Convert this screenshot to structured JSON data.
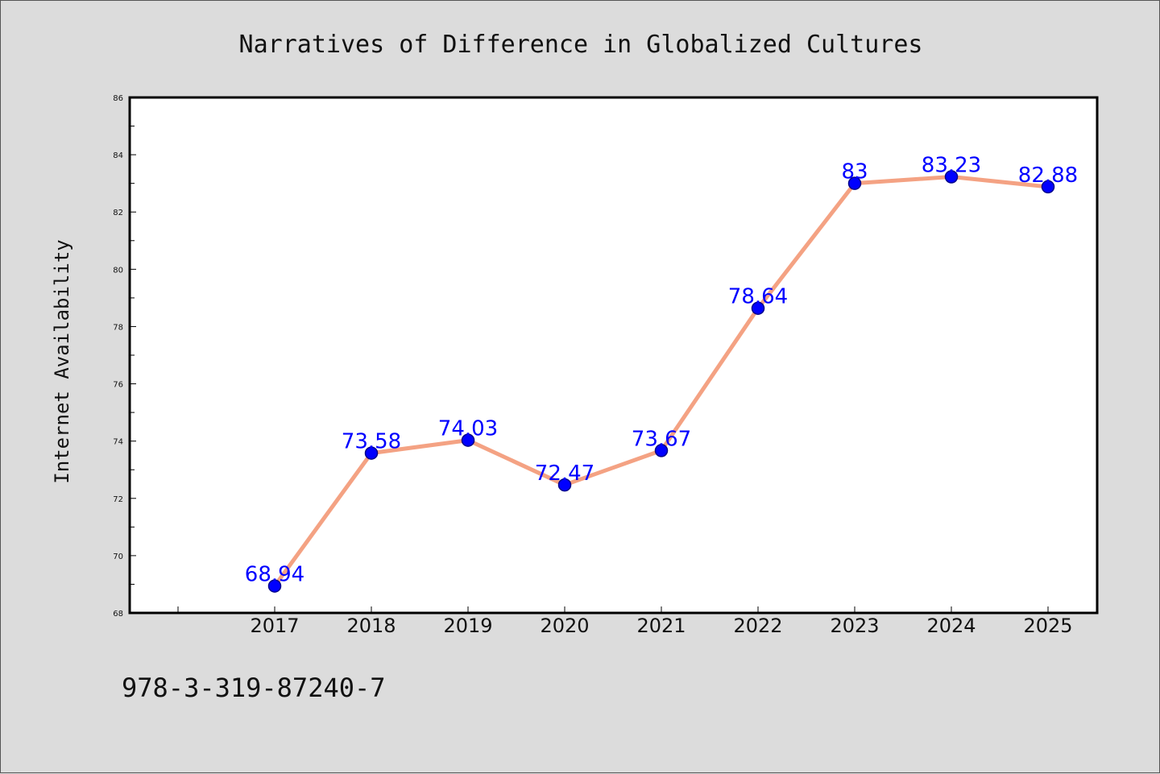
{
  "colors": {
    "background": "#dcdcdc",
    "plot_background": "#ffffff",
    "line": "#f4a283",
    "marker": "#0000ff",
    "marker_edge": "#00008b",
    "data_label": "#0000ff"
  },
  "chart_data": {
    "type": "line",
    "title": "Narratives of Difference in Globalized Cultures",
    "xlabel": "",
    "ylabel": "Internet Availability",
    "categories": [
      "2017",
      "2018",
      "2019",
      "2020",
      "2021",
      "2022",
      "2023",
      "2024",
      "2025"
    ],
    "series": [
      {
        "values": [
          68.94,
          73.58,
          74.03,
          72.47,
          73.67,
          78.64,
          83,
          83.23,
          82.88
        ]
      }
    ],
    "data_labels": [
      "68.94",
      "73.58",
      "74.03",
      "72.47",
      "73.67",
      "78.64",
      "83",
      "83.23",
      "82.88"
    ],
    "ylim": [
      68,
      86
    ],
    "yticks": [
      "68",
      "70",
      "72",
      "74",
      "76",
      "78",
      "80",
      "82",
      "84",
      "86"
    ],
    "x_start_padding_categories": 1,
    "grid": false,
    "legend": "none"
  },
  "footnote": "978-3-319-87240-7"
}
